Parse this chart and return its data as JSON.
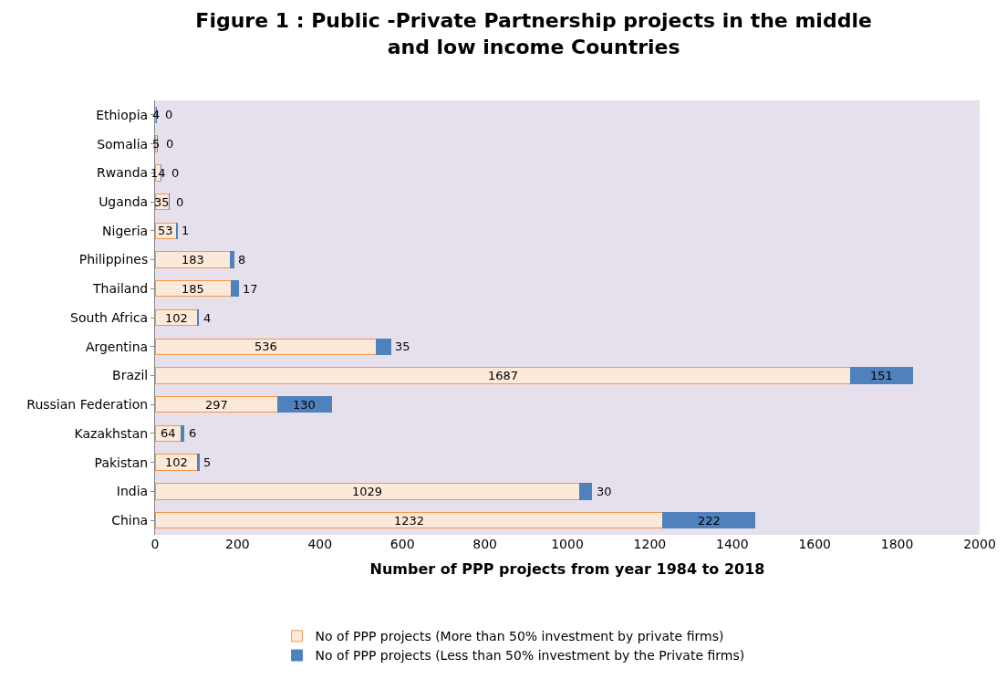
{
  "chart_data": {
    "type": "bar",
    "orientation": "horizontal",
    "stacked": true,
    "title": "Figure 1 : Public -Private Partnership projects in the middle and low income Countries",
    "xlabel": "Number of PPP projects from year 1984 to 2018",
    "categories": [
      "Ethiopia",
      "Somalia",
      "Rwanda",
      "Uganda",
      "Nigeria",
      "Philippines",
      "Thailand",
      "South Africa",
      "Argentina",
      "Brazil",
      "Russian Federation",
      "Kazakhstan",
      "Pakistan",
      "India",
      "China"
    ],
    "series": [
      {
        "name": "No of PPP projects (More than 50% investment by private firms)",
        "color": "#fde9d9",
        "values": [
          4,
          5,
          14,
          35,
          53,
          183,
          185,
          102,
          536,
          1687,
          297,
          64,
          102,
          1029,
          1232
        ]
      },
      {
        "name": "No of PPP projects (Less than 50% investment by the Private firms)",
        "color": "#4f81bd",
        "values": [
          0,
          0,
          0,
          0,
          1,
          8,
          17,
          4,
          35,
          151,
          130,
          6,
          5,
          30,
          222
        ]
      }
    ],
    "xlim": [
      0,
      2000
    ],
    "xticks": [
      0,
      200,
      400,
      600,
      800,
      1000,
      1200,
      1400,
      1600,
      1800,
      2000
    ],
    "grid": false,
    "legend": "bottom",
    "data_labels": true
  }
}
